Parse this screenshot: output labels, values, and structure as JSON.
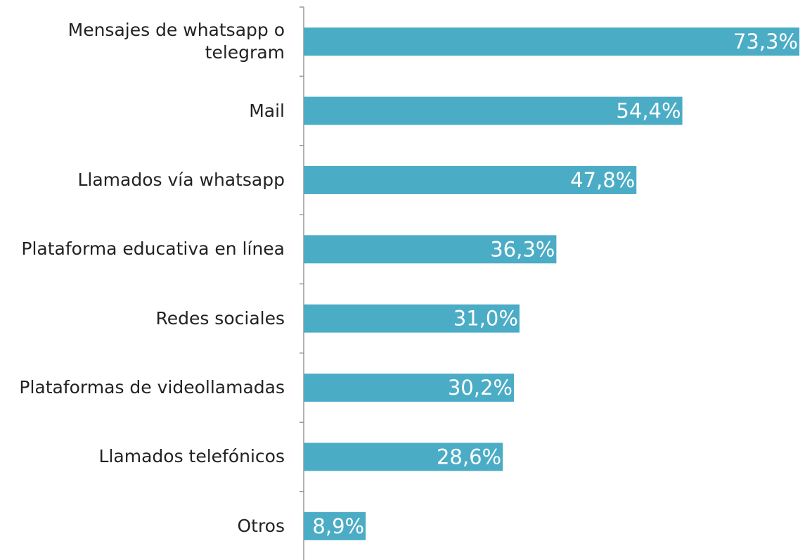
{
  "chart_data": {
    "type": "hbar",
    "categories": [
      "Mensajes de whatsapp o telegram",
      "Mail",
      "Llamados vía whatsapp",
      "Plataforma educativa en línea",
      "Redes sociales",
      "Plataformas de videollamadas",
      "Llamados telefónicos",
      "Otros"
    ],
    "values": [
      73.3,
      54.4,
      47.8,
      36.3,
      31.0,
      30.2,
      28.6,
      8.9
    ],
    "value_labels": [
      "73,3%",
      "54,4%",
      "47,8%",
      "36,3%",
      "31,0%",
      "30,2%",
      "28,6%",
      "8,9%"
    ],
    "color": "#4bacc6"
  }
}
